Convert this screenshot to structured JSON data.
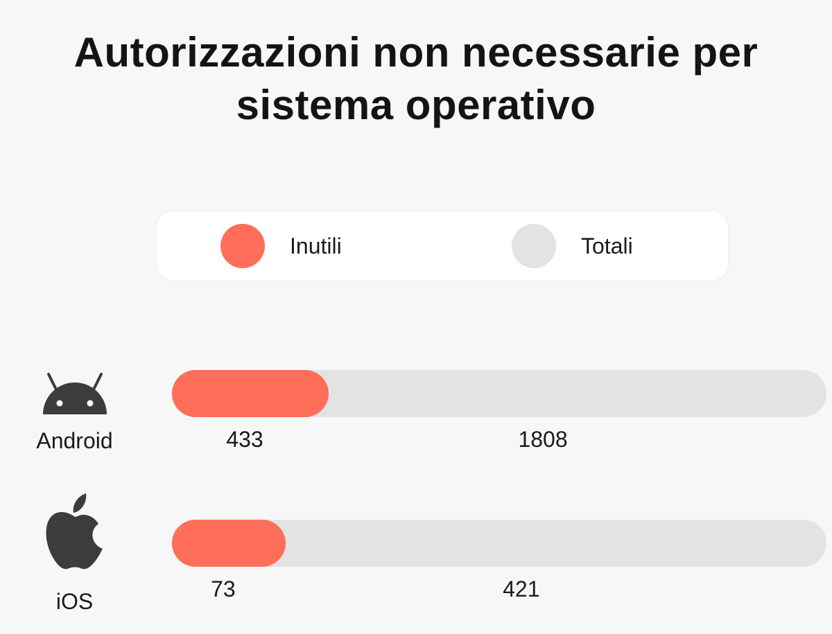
{
  "chart_data": {
    "type": "bar",
    "title": "Autorizzazioni non necessarie per sistema operativo",
    "categories": [
      "Android",
      "iOS"
    ],
    "series": [
      {
        "name": "Inutili",
        "values": [
          433,
          73
        ]
      },
      {
        "name": "Totali",
        "values": [
          1808,
          421
        ]
      }
    ],
    "legend_position": "top",
    "orientation": "horizontal"
  },
  "colors": {
    "inutili": "#ff6e59",
    "totali": "#e3e3e3",
    "icon": "#3c3c3c"
  },
  "icons": [
    "android-icon",
    "apple-icon"
  ]
}
